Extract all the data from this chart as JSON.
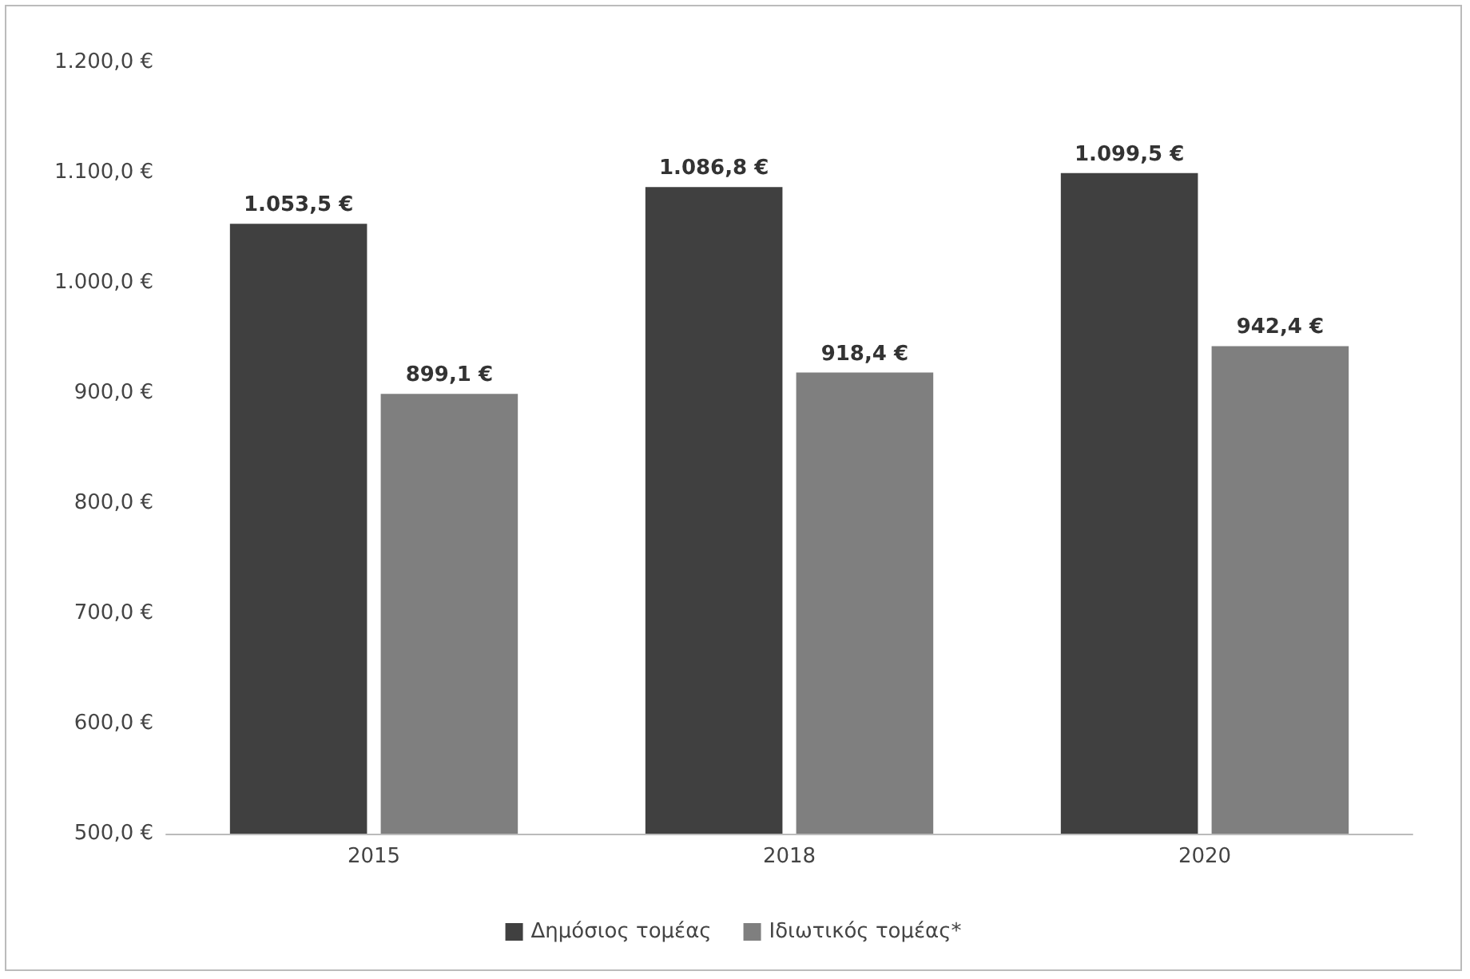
{
  "chart_data": {
    "type": "bar",
    "categories": [
      "2015",
      "2018",
      "2020"
    ],
    "series": [
      {
        "name": "Δημόσιος τομέας",
        "color": "#404040",
        "values": [
          1053.5,
          1086.8,
          1099.5
        ],
        "value_labels": [
          "1.053,5 €",
          "1.086,8 €",
          "1.099,5 €"
        ]
      },
      {
        "name": "Ιδιωτικός τομέας*",
        "color": "#7f7f7f",
        "values": [
          899.1,
          918.4,
          942.4
        ],
        "value_labels": [
          "899,1 €",
          "918,4 €",
          "942,4 €"
        ]
      }
    ],
    "ylim": [
      500,
      1200
    ],
    "yticks": [
      {
        "value": 500,
        "label": "500,0 €"
      },
      {
        "value": 600,
        "label": "600,0 €"
      },
      {
        "value": 700,
        "label": "700,0 €"
      },
      {
        "value": 800,
        "label": "800,0 €"
      },
      {
        "value": 900,
        "label": "900,0 €"
      },
      {
        "value": 1000,
        "label": "1.000,0 €"
      },
      {
        "value": 1100,
        "label": "1.100,0 €"
      },
      {
        "value": 1200,
        "label": "1.200,0 €"
      }
    ],
    "grid": false,
    "legend": "bottom"
  }
}
